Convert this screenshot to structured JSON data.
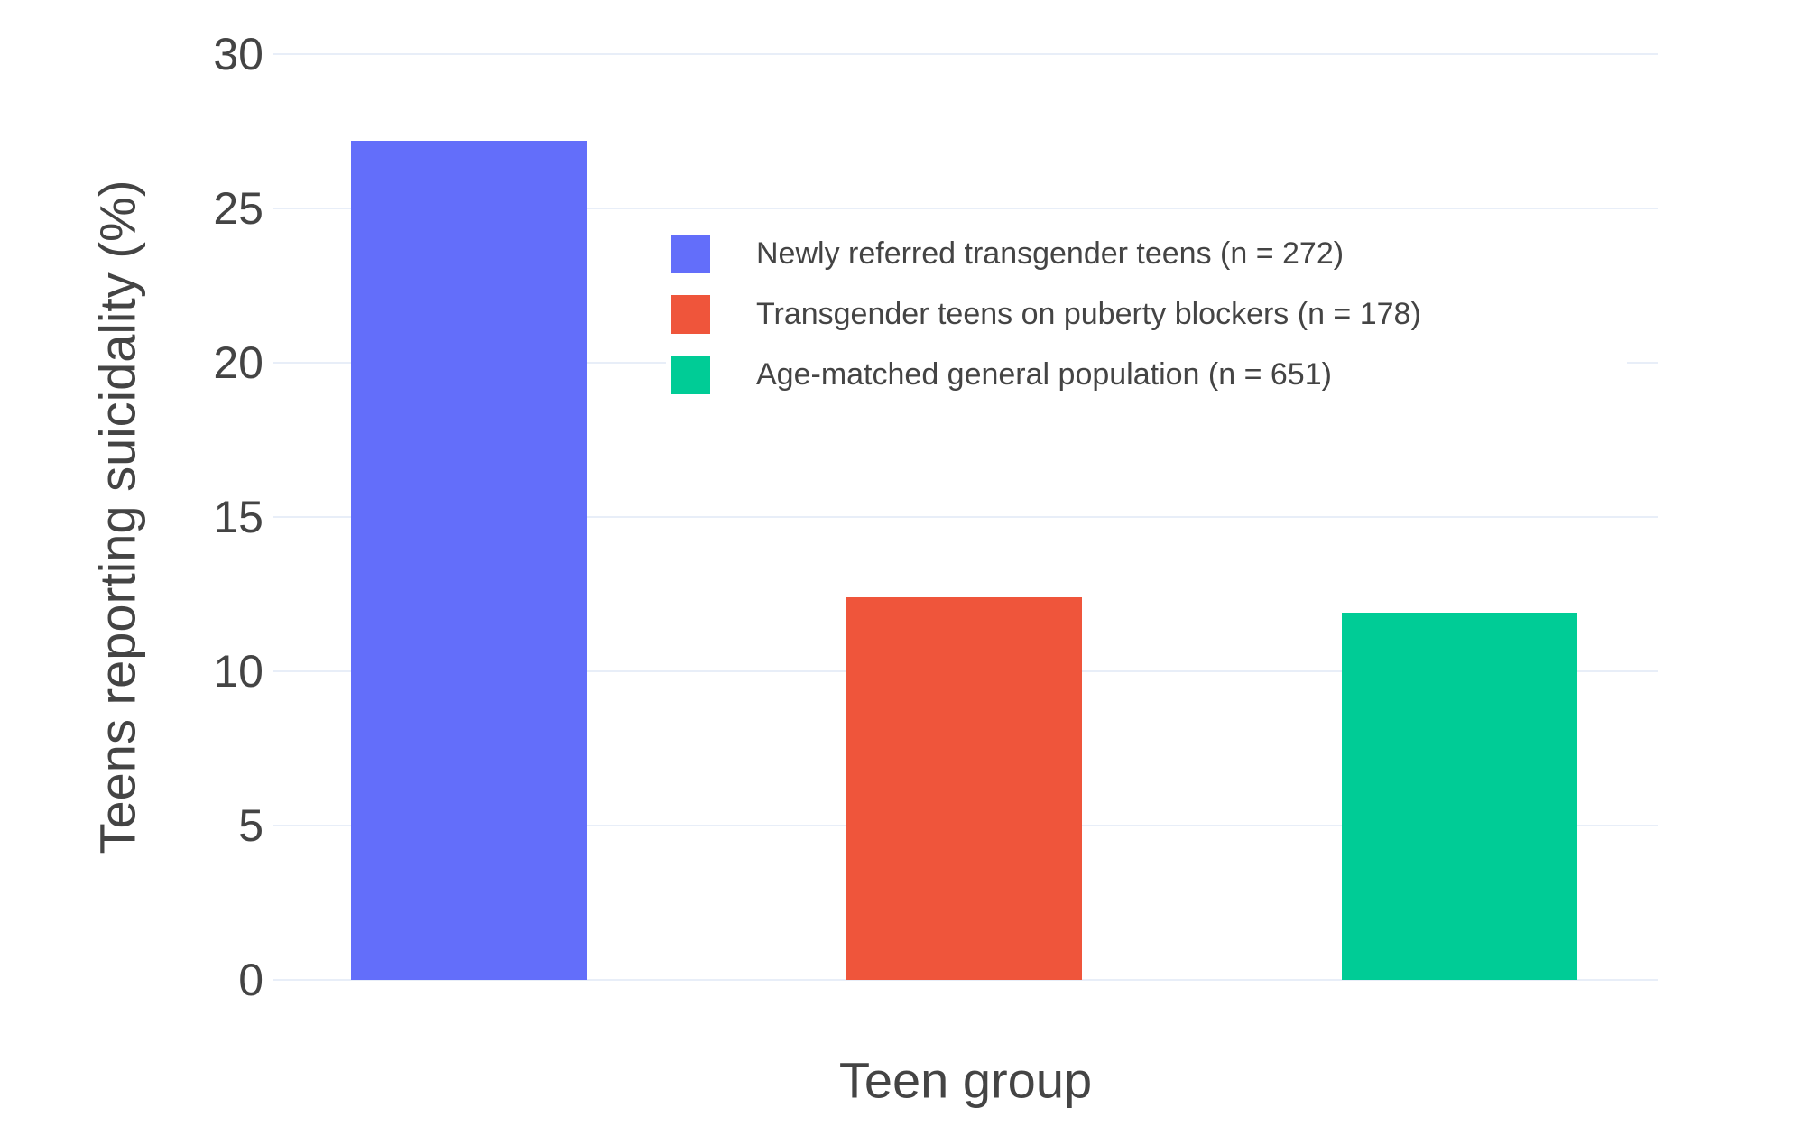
{
  "chart_data": {
    "type": "bar",
    "title": "",
    "xlabel": "Teen group",
    "ylabel": "Teens reporting suicidality (%)",
    "ylim": [
      0,
      30
    ],
    "yticks": [
      0,
      5,
      10,
      15,
      20,
      25,
      30
    ],
    "grid": true,
    "legend_position": "inside-top-right",
    "x_tick_labels": [],
    "series": [
      {
        "name": "Newly referred transgender teens (n = 272)",
        "value": 27.2,
        "color": "#636EFA"
      },
      {
        "name": "Transgender teens on puberty blockers (n = 178)",
        "value": 12.4,
        "color": "#EF553B"
      },
      {
        "name": "Age-matched general population (n = 651)",
        "value": 11.9,
        "color": "#00CC96"
      }
    ]
  },
  "colors": {
    "background": "#FFFFFF",
    "gridline": "#E8EEF8",
    "text": "#444444"
  }
}
